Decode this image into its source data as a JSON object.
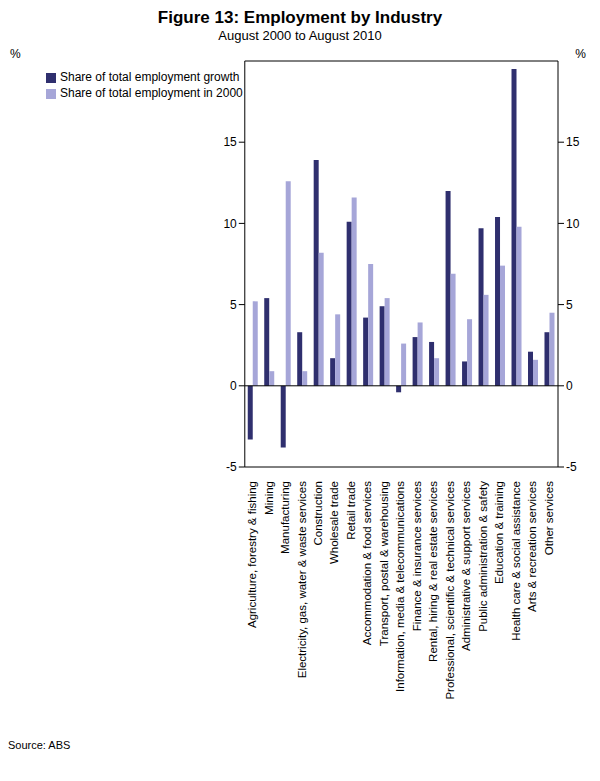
{
  "chart_data": {
    "type": "bar",
    "title": "Figure 13: Employment by Industry",
    "subtitle": "August 2000 to August 2010",
    "source": "Source: ABS",
    "ylabel": "%",
    "y2label": "%",
    "categories": [
      "Agriculture, forestry & fishing",
      "Mining",
      "Manufacturing",
      "Electricity, gas, water & waste services",
      "Construction",
      "Wholesale trade",
      "Retail trade",
      "Accommodation & food services",
      "Transport, postal & warehousing",
      "Information, media & telecommunications",
      "Finance & insurance services",
      "Rental, hiring & real estate services",
      "Professional, scientific & technical services",
      "Administrative & support services",
      "Public administration & safety",
      "Education & training",
      "Health care & social assistance",
      "Arts & recreation services",
      "Other services"
    ],
    "series": [
      {
        "name": "Share of total employment growth",
        "color": "#2f2f6e",
        "values": [
          -3.3,
          5.4,
          -3.8,
          3.3,
          13.9,
          1.7,
          10.1,
          4.2,
          4.9,
          -0.4,
          3.0,
          2.7,
          12.0,
          1.5,
          9.7,
          10.4,
          19.5,
          2.1,
          3.3
        ]
      },
      {
        "name": "Share of total employment in 2000",
        "color": "#a6a6d8",
        "values": [
          5.2,
          0.9,
          12.6,
          0.9,
          8.2,
          4.4,
          11.6,
          7.5,
          5.4,
          2.6,
          3.9,
          1.7,
          6.9,
          4.1,
          5.6,
          7.4,
          9.8,
          1.6,
          4.5
        ]
      }
    ],
    "ylim": [
      -5,
      20
    ],
    "yticks": [
      -5,
      0,
      5,
      10,
      15
    ],
    "y2lim": [
      -5,
      20
    ],
    "y2ticks": [
      -5,
      0,
      5,
      10,
      15
    ],
    "legend": "upper left",
    "grid": false
  }
}
